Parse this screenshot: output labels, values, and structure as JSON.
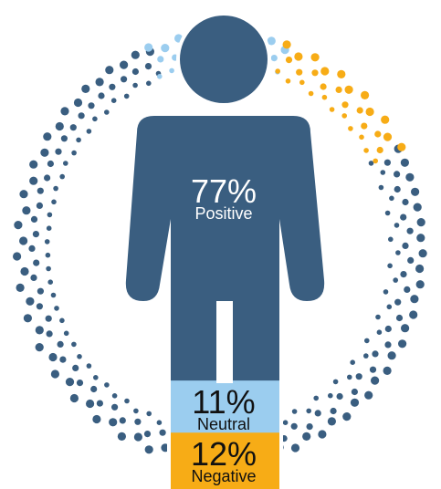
{
  "chart_data": {
    "type": "pie",
    "categories": [
      "Positive",
      "Neutral",
      "Negative"
    ],
    "values": [
      77,
      11,
      12
    ],
    "value_labels": [
      "77%",
      "11%",
      "12%"
    ],
    "colors": [
      "#3a5e80",
      "#9bcdef",
      "#f7ac16"
    ],
    "text_colors": [
      "#ffffff",
      "#111111",
      "#111111"
    ],
    "title": "",
    "legend": "none"
  }
}
